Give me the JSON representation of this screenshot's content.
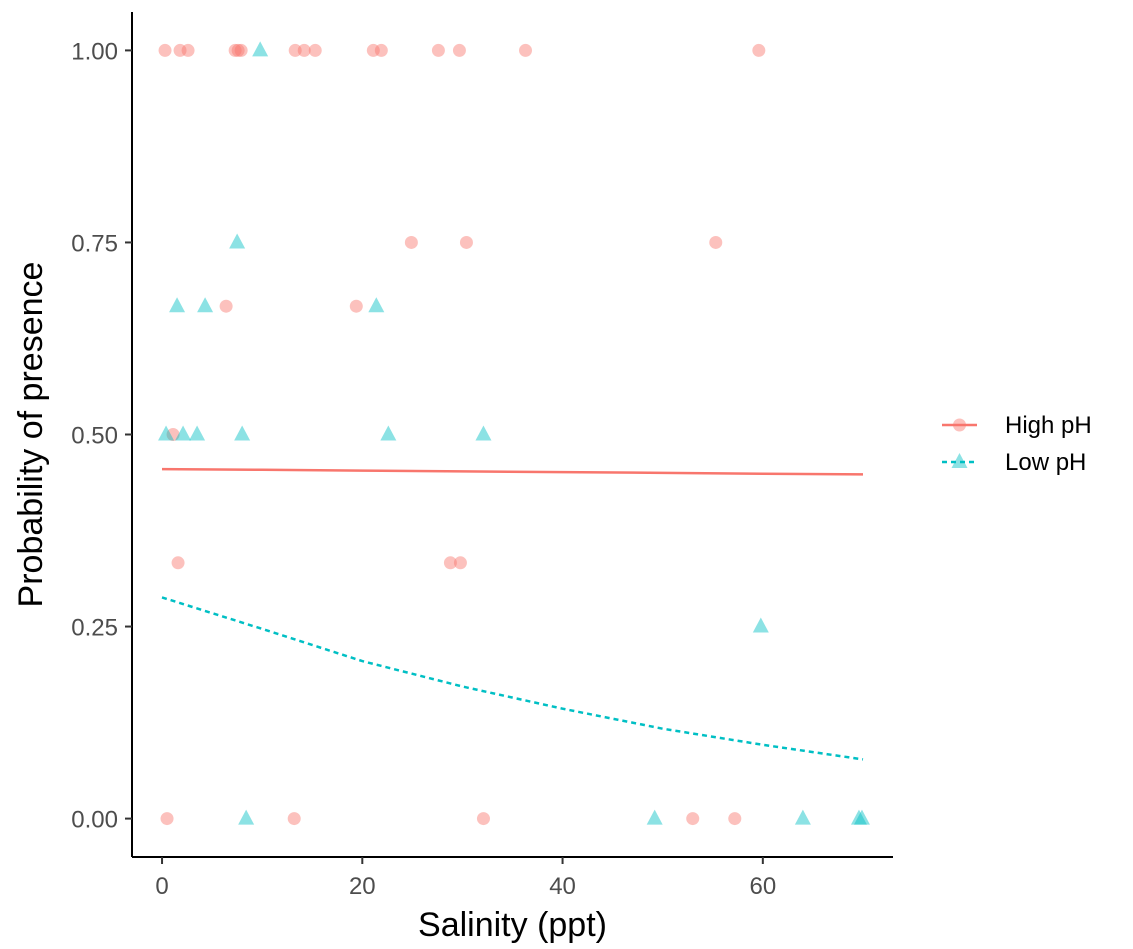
{
  "chart_data": {
    "type": "scatter",
    "title": "",
    "xlabel": "Salinity (ppt)",
    "ylabel": "Probability of presence",
    "xlim": [
      -3,
      73
    ],
    "ylim": [
      -0.05,
      1.05
    ],
    "x_ticks": [
      0,
      20,
      40,
      60
    ],
    "x_tick_labels": [
      "0",
      "20",
      "40",
      "60"
    ],
    "y_ticks": [
      0,
      0.25,
      0.5,
      0.75,
      1.0
    ],
    "y_tick_labels": [
      "0.00",
      "0.25",
      "0.50",
      "0.75",
      "1.00"
    ],
    "grid": false,
    "legend_position": "right",
    "series": [
      {
        "name": "High pH",
        "color": "#F8766D",
        "marker": "circle",
        "line_style": "solid",
        "points": [
          {
            "x": 0.3,
            "y": 1.0
          },
          {
            "x": 1.8,
            "y": 1.0
          },
          {
            "x": 2.6,
            "y": 1.0
          },
          {
            "x": 7.3,
            "y": 1.0
          },
          {
            "x": 7.6,
            "y": 1.0
          },
          {
            "x": 7.9,
            "y": 1.0
          },
          {
            "x": 13.3,
            "y": 1.0
          },
          {
            "x": 14.2,
            "y": 1.0
          },
          {
            "x": 15.3,
            "y": 1.0
          },
          {
            "x": 21.1,
            "y": 1.0
          },
          {
            "x": 21.9,
            "y": 1.0
          },
          {
            "x": 27.6,
            "y": 1.0
          },
          {
            "x": 29.7,
            "y": 1.0
          },
          {
            "x": 36.3,
            "y": 1.0
          },
          {
            "x": 59.6,
            "y": 1.0
          },
          {
            "x": 24.9,
            "y": 0.75
          },
          {
            "x": 30.4,
            "y": 0.75
          },
          {
            "x": 55.3,
            "y": 0.75
          },
          {
            "x": 6.4,
            "y": 0.667
          },
          {
            "x": 19.4,
            "y": 0.667
          },
          {
            "x": 1.1,
            "y": 0.5
          },
          {
            "x": 1.6,
            "y": 0.333
          },
          {
            "x": 28.8,
            "y": 0.333
          },
          {
            "x": 29.8,
            "y": 0.333
          },
          {
            "x": 0.5,
            "y": 0.0
          },
          {
            "x": 13.2,
            "y": 0.0
          },
          {
            "x": 32.1,
            "y": 0.0
          },
          {
            "x": 53.0,
            "y": 0.0
          },
          {
            "x": 57.2,
            "y": 0.0
          }
        ],
        "fit": {
          "x": [
            0,
            10,
            20,
            30,
            40,
            50,
            60,
            70
          ],
          "y": [
            0.455,
            0.454,
            0.453,
            0.452,
            0.451,
            0.45,
            0.449,
            0.448
          ]
        }
      },
      {
        "name": "Low pH",
        "color": "#00BFC4",
        "marker": "triangle",
        "line_style": "dashed",
        "points": [
          {
            "x": 9.8,
            "y": 1.0
          },
          {
            "x": 7.5,
            "y": 0.75
          },
          {
            "x": 1.5,
            "y": 0.667
          },
          {
            "x": 4.3,
            "y": 0.667
          },
          {
            "x": 21.4,
            "y": 0.667
          },
          {
            "x": 0.4,
            "y": 0.5
          },
          {
            "x": 2.1,
            "y": 0.5
          },
          {
            "x": 3.5,
            "y": 0.5
          },
          {
            "x": 8.0,
            "y": 0.5
          },
          {
            "x": 22.6,
            "y": 0.5
          },
          {
            "x": 32.1,
            "y": 0.5
          },
          {
            "x": 59.8,
            "y": 0.25
          },
          {
            "x": 8.4,
            "y": 0.0
          },
          {
            "x": 49.2,
            "y": 0.0
          },
          {
            "x": 64.0,
            "y": 0.0
          },
          {
            "x": 69.6,
            "y": 0.0
          },
          {
            "x": 69.9,
            "y": 0.0
          }
        ],
        "fit": {
          "x": [
            0,
            10,
            20,
            30,
            40,
            50,
            60,
            70
          ],
          "y": [
            0.288,
            0.247,
            0.205,
            0.172,
            0.143,
            0.117,
            0.096,
            0.077
          ]
        }
      }
    ]
  }
}
